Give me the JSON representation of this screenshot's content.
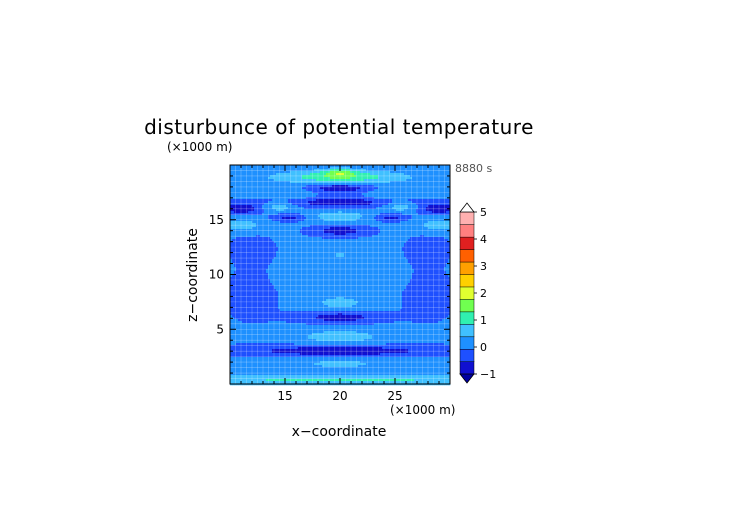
{
  "chart_data": {
    "type": "heatmap",
    "title": "disturbunce of potential temperature",
    "time_label": "8880 s",
    "xlabel": "x−coordinate",
    "ylabel": "z−coordinate",
    "x_unit": "(×1000 m)",
    "y_unit": "(×1000 m)",
    "xlim": [
      10,
      30
    ],
    "ylim": [
      0,
      20
    ],
    "xticks": [
      "15",
      "20",
      "25"
    ],
    "yticks": [
      "5",
      "10",
      "15"
    ],
    "grid": true,
    "colorbar": {
      "ticks": [
        "5",
        "4",
        "3",
        "2",
        "1",
        "0",
        "−1"
      ],
      "levels": [
        -1,
        -0.5,
        0,
        0.5,
        1,
        1.5,
        2,
        2.5,
        3,
        3.5,
        4,
        4.5,
        5
      ],
      "colors": [
        "#1010d0",
        "#1e50ff",
        "#1e90ff",
        "#40c0ff",
        "#30f0b0",
        "#70ff50",
        "#e0ff30",
        "#ffd000",
        "#ffa000",
        "#ff6000",
        "#e02020",
        "#ff8080",
        "#ffb0b0"
      ]
    },
    "field": {
      "background": 0.1,
      "features": [
        {
          "x": 20,
          "z": 0.4,
          "sx": 30,
          "sz": 0.5,
          "amp": 0.95
        },
        {
          "x": 20,
          "z": 1.9,
          "sx": 5.5,
          "sz": 0.7,
          "amp": 0.5
        },
        {
          "x": 20,
          "z": 3.0,
          "sx": 9,
          "sz": 0.55,
          "amp": -1.0
        },
        {
          "x": 20,
          "z": 4.3,
          "sx": 4,
          "sz": 0.7,
          "amp": 0.7
        },
        {
          "x": 20,
          "z": 6.1,
          "sx": 3.5,
          "sz": 0.55,
          "amp": -0.9
        },
        {
          "x": 20,
          "z": 7.4,
          "sx": 2.5,
          "sz": 0.7,
          "amp": 0.6
        },
        {
          "x": 20,
          "z": 11.8,
          "sx": 0.5,
          "sz": 0.35,
          "amp": 0.6
        },
        {
          "x": 20,
          "z": 14.0,
          "sx": 2.5,
          "sz": 0.5,
          "amp": -0.9
        },
        {
          "x": 20,
          "z": 15.3,
          "sx": 3,
          "sz": 0.6,
          "amp": 0.7
        },
        {
          "x": 20,
          "z": 16.6,
          "sx": 6,
          "sz": 0.5,
          "amp": -0.95
        },
        {
          "x": 20,
          "z": 17.9,
          "sx": 3,
          "sz": 0.45,
          "amp": -1.0
        },
        {
          "x": 20,
          "z": 18.9,
          "sx": 6,
          "sz": 0.6,
          "amp": 1.3
        },
        {
          "x": 20,
          "z": 19.3,
          "sx": 1.5,
          "sz": 0.4,
          "amp": 1.0
        },
        {
          "x": 11,
          "z": 16.0,
          "sx": 1.8,
          "sz": 0.5,
          "amp": -1.0
        },
        {
          "x": 29,
          "z": 16.0,
          "sx": 1.8,
          "sz": 0.5,
          "amp": -1.0
        },
        {
          "x": 14.5,
          "z": 16.2,
          "sx": 1.5,
          "sz": 0.45,
          "amp": 0.8
        },
        {
          "x": 25.5,
          "z": 16.2,
          "sx": 1.5,
          "sz": 0.45,
          "amp": 0.8
        },
        {
          "x": 15.5,
          "z": 15.2,
          "sx": 1.5,
          "sz": 0.35,
          "amp": -0.8
        },
        {
          "x": 24.5,
          "z": 15.2,
          "sx": 1.5,
          "sz": 0.35,
          "amp": -0.8
        },
        {
          "x": 11,
          "z": 14.5,
          "sx": 2,
          "sz": 0.6,
          "amp": 0.7
        },
        {
          "x": 29,
          "z": 14.5,
          "sx": 2,
          "sz": 0.6,
          "amp": 0.7
        },
        {
          "x": 16,
          "z": 17.2,
          "sx": 2,
          "sz": 0.6,
          "amp": 0.4
        },
        {
          "x": 24,
          "z": 17.2,
          "sx": 2,
          "sz": 0.6,
          "amp": 0.4
        },
        {
          "x": 20,
          "z": 9.5,
          "sx": 4,
          "sz": 1.0,
          "amp": 0.25
        },
        {
          "x": 12,
          "z": 8.0,
          "sx": 3,
          "sz": 3.0,
          "amp": -0.2
        },
        {
          "x": 28,
          "z": 8.0,
          "sx": 3,
          "sz": 3.0,
          "amp": -0.2
        },
        {
          "x": 12,
          "z": 12.5,
          "sx": 2.5,
          "sz": 1.5,
          "amp": -0.2
        },
        {
          "x": 28,
          "z": 12.5,
          "sx": 2.5,
          "sz": 1.5,
          "amp": -0.2
        }
      ]
    }
  }
}
